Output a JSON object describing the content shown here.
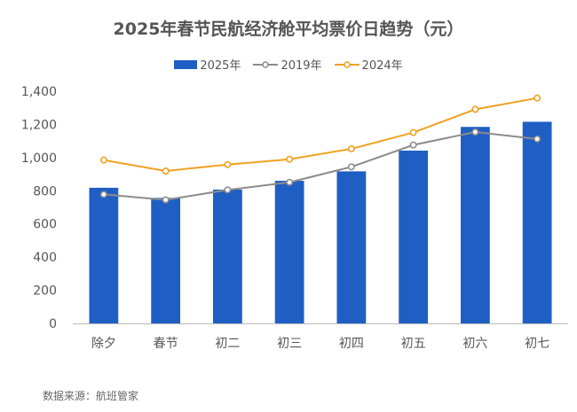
{
  "chart_data": {
    "type": "bar",
    "title": "2025年春节民航经济舱平均票价日趋势（元）",
    "categories": [
      "除夕",
      "春节",
      "初二",
      "初三",
      "初四",
      "初五",
      "初六",
      "初七"
    ],
    "series": [
      {
        "name": "2025年",
        "type": "bar",
        "color": "#1F5FC4",
        "values": [
          818,
          757,
          807,
          860,
          917,
          1042,
          1185,
          1216
        ]
      },
      {
        "name": "2019年",
        "type": "line",
        "color": "#8C8C8C",
        "values": [
          778,
          745,
          805,
          851,
          944,
          1076,
          1154,
          1112
        ]
      },
      {
        "name": "2024年",
        "type": "line",
        "color": "#F0A020",
        "values": [
          985,
          919,
          958,
          990,
          1053,
          1151,
          1291,
          1359
        ]
      }
    ],
    "yticks": [
      "0",
      "200",
      "400",
      "600",
      "800",
      "1,000",
      "1,200",
      "1,400"
    ],
    "ylim": [
      0,
      1400
    ],
    "grid": false,
    "legend_position": "top"
  },
  "source": "数据来源：航班管家"
}
